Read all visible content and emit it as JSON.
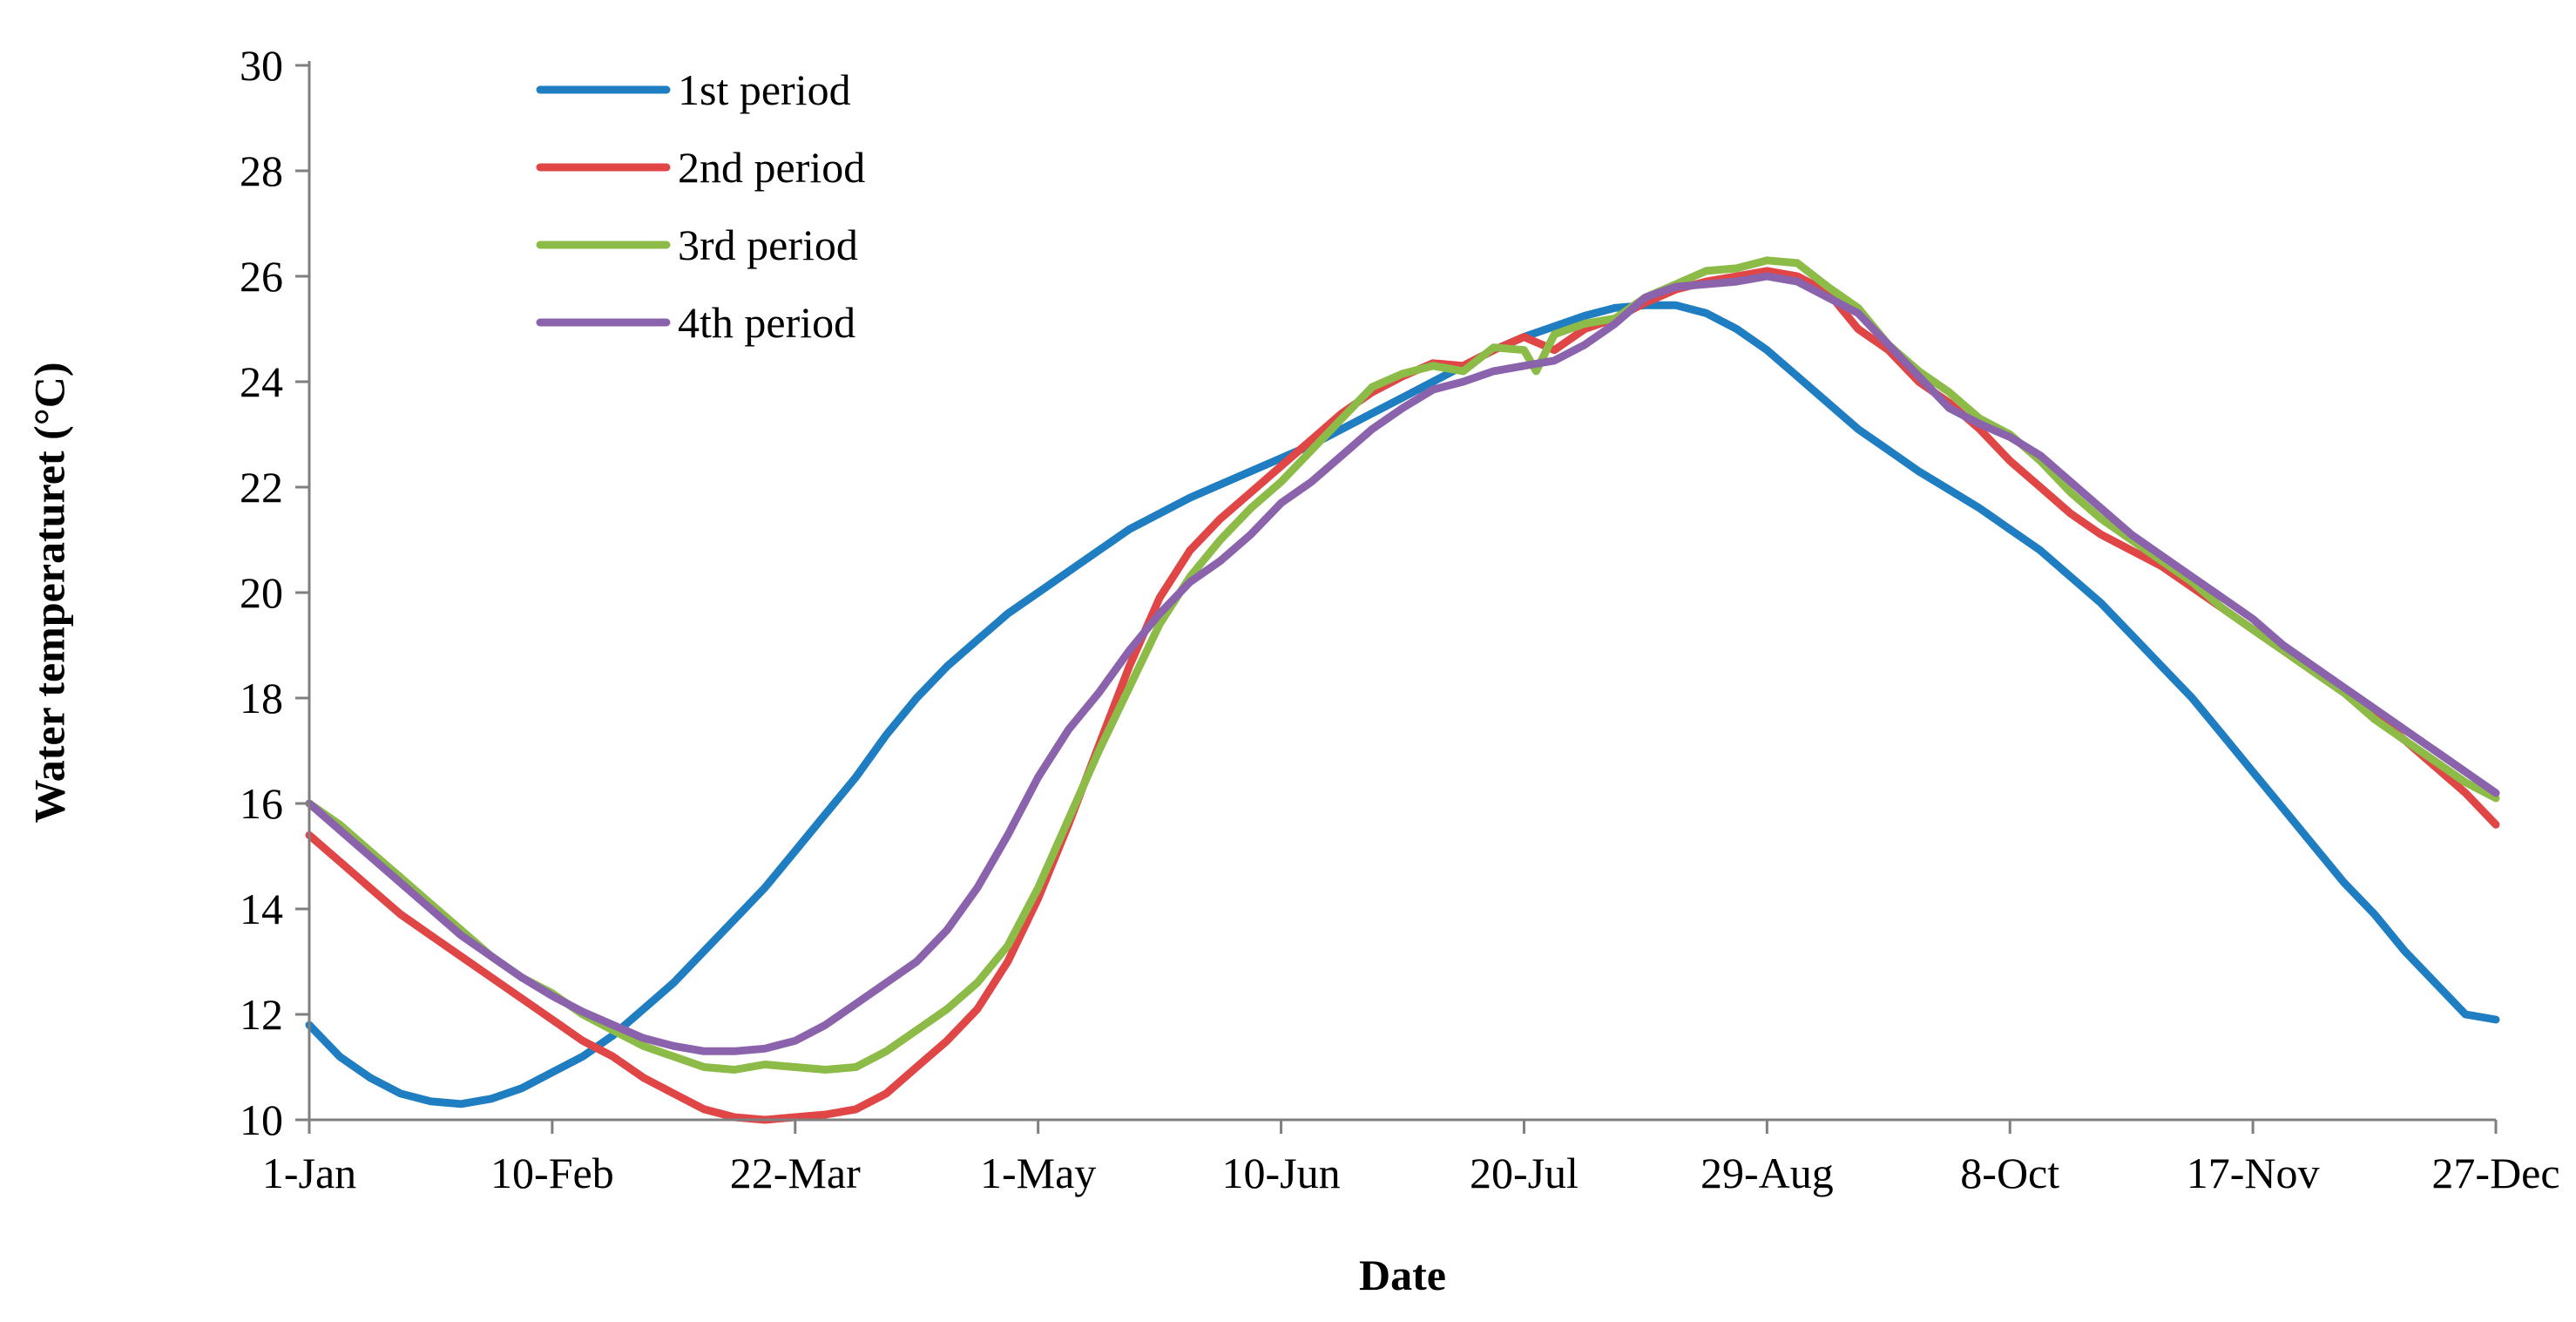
{
  "chart_data": {
    "type": "line",
    "title": "",
    "xlabel": "Date",
    "ylabel": "Water temperaturet (°C)",
    "ylim": [
      10,
      30
    ],
    "xlim": [
      1,
      361
    ],
    "yticks": [
      10,
      12,
      14,
      16,
      18,
      20,
      22,
      24,
      26,
      28,
      30
    ],
    "xticks": [
      {
        "day": 1,
        "label": "1-Jan"
      },
      {
        "day": 41,
        "label": "10-Feb"
      },
      {
        "day": 81,
        "label": "22-Mar"
      },
      {
        "day": 121,
        "label": "1-May"
      },
      {
        "day": 161,
        "label": "10-Jun"
      },
      {
        "day": 201,
        "label": "20-Jul"
      },
      {
        "day": 241,
        "label": "29-Aug"
      },
      {
        "day": 281,
        "label": "8-Oct"
      },
      {
        "day": 321,
        "label": "17-Nov"
      },
      {
        "day": 361,
        "label": "27-Dec"
      }
    ],
    "grid": false,
    "legend_position": "top-left",
    "series": [
      {
        "name": "1st period",
        "color": "#1f7dc1",
        "points": [
          [
            1,
            11.8
          ],
          [
            6,
            11.2
          ],
          [
            11,
            10.8
          ],
          [
            16,
            10.5
          ],
          [
            21,
            10.35
          ],
          [
            26,
            10.3
          ],
          [
            31,
            10.4
          ],
          [
            36,
            10.6
          ],
          [
            41,
            10.9
          ],
          [
            46,
            11.2
          ],
          [
            51,
            11.6
          ],
          [
            56,
            12.1
          ],
          [
            61,
            12.6
          ],
          [
            66,
            13.2
          ],
          [
            71,
            13.8
          ],
          [
            76,
            14.4
          ],
          [
            81,
            15.1
          ],
          [
            86,
            15.8
          ],
          [
            91,
            16.5
          ],
          [
            96,
            17.3
          ],
          [
            101,
            18.0
          ],
          [
            106,
            18.6
          ],
          [
            111,
            19.1
          ],
          [
            116,
            19.6
          ],
          [
            121,
            20.0
          ],
          [
            126,
            20.4
          ],
          [
            131,
            20.8
          ],
          [
            136,
            21.2
          ],
          [
            141,
            21.5
          ],
          [
            146,
            21.8
          ],
          [
            151,
            22.05
          ],
          [
            156,
            22.3
          ],
          [
            161,
            22.55
          ],
          [
            166,
            22.8
          ],
          [
            171,
            23.1
          ],
          [
            176,
            23.4
          ],
          [
            181,
            23.7
          ],
          [
            186,
            24.0
          ],
          [
            191,
            24.3
          ],
          [
            196,
            24.6
          ],
          [
            201,
            24.85
          ],
          [
            206,
            25.05
          ],
          [
            211,
            25.25
          ],
          [
            216,
            25.4
          ],
          [
            221,
            25.45
          ],
          [
            226,
            25.45
          ],
          [
            231,
            25.3
          ],
          [
            236,
            25.0
          ],
          [
            241,
            24.6
          ],
          [
            246,
            24.1
          ],
          [
            251,
            23.6
          ],
          [
            256,
            23.1
          ],
          [
            261,
            22.7
          ],
          [
            266,
            22.3
          ],
          [
            271,
            21.95
          ],
          [
            276,
            21.6
          ],
          [
            281,
            21.2
          ],
          [
            286,
            20.8
          ],
          [
            291,
            20.3
          ],
          [
            296,
            19.8
          ],
          [
            301,
            19.2
          ],
          [
            306,
            18.6
          ],
          [
            311,
            18.0
          ],
          [
            316,
            17.3
          ],
          [
            321,
            16.6
          ],
          [
            326,
            15.9
          ],
          [
            331,
            15.2
          ],
          [
            336,
            14.5
          ],
          [
            341,
            13.9
          ],
          [
            346,
            13.2
          ],
          [
            351,
            12.6
          ],
          [
            356,
            12.0
          ],
          [
            361,
            11.9
          ]
        ]
      },
      {
        "name": "2nd period",
        "color": "#e04646",
        "points": [
          [
            1,
            15.4
          ],
          [
            6,
            14.9
          ],
          [
            11,
            14.4
          ],
          [
            16,
            13.9
          ],
          [
            21,
            13.5
          ],
          [
            26,
            13.1
          ],
          [
            31,
            12.7
          ],
          [
            36,
            12.3
          ],
          [
            41,
            11.9
          ],
          [
            46,
            11.5
          ],
          [
            51,
            11.2
          ],
          [
            56,
            10.8
          ],
          [
            61,
            10.5
          ],
          [
            66,
            10.2
          ],
          [
            71,
            10.05
          ],
          [
            76,
            10.0
          ],
          [
            81,
            10.05
          ],
          [
            86,
            10.1
          ],
          [
            91,
            10.2
          ],
          [
            96,
            10.5
          ],
          [
            101,
            11.0
          ],
          [
            106,
            11.5
          ],
          [
            111,
            12.1
          ],
          [
            116,
            13.0
          ],
          [
            121,
            14.2
          ],
          [
            126,
            15.6
          ],
          [
            131,
            17.1
          ],
          [
            136,
            18.6
          ],
          [
            141,
            19.9
          ],
          [
            146,
            20.8
          ],
          [
            151,
            21.4
          ],
          [
            156,
            21.9
          ],
          [
            161,
            22.4
          ],
          [
            166,
            22.9
          ],
          [
            171,
            23.4
          ],
          [
            176,
            23.8
          ],
          [
            181,
            24.1
          ],
          [
            186,
            24.35
          ],
          [
            191,
            24.3
          ],
          [
            196,
            24.6
          ],
          [
            201,
            24.85
          ],
          [
            206,
            24.6
          ],
          [
            211,
            25.0
          ],
          [
            216,
            25.2
          ],
          [
            221,
            25.5
          ],
          [
            226,
            25.75
          ],
          [
            231,
            25.9
          ],
          [
            236,
            26.0
          ],
          [
            241,
            26.1
          ],
          [
            246,
            26.0
          ],
          [
            251,
            25.7
          ],
          [
            256,
            25.0
          ],
          [
            261,
            24.6
          ],
          [
            266,
            24.0
          ],
          [
            271,
            23.6
          ],
          [
            276,
            23.1
          ],
          [
            281,
            22.5
          ],
          [
            286,
            22.0
          ],
          [
            291,
            21.5
          ],
          [
            296,
            21.1
          ],
          [
            301,
            20.8
          ],
          [
            306,
            20.5
          ],
          [
            311,
            20.1
          ],
          [
            316,
            19.7
          ],
          [
            321,
            19.3
          ],
          [
            326,
            18.9
          ],
          [
            331,
            18.5
          ],
          [
            336,
            18.1
          ],
          [
            341,
            17.7
          ],
          [
            346,
            17.2
          ],
          [
            351,
            16.7
          ],
          [
            356,
            16.2
          ],
          [
            361,
            15.6
          ]
        ]
      },
      {
        "name": "3rd period",
        "color": "#8cbb48",
        "points": [
          [
            1,
            16.0
          ],
          [
            6,
            15.6
          ],
          [
            11,
            15.1
          ],
          [
            16,
            14.6
          ],
          [
            21,
            14.1
          ],
          [
            26,
            13.6
          ],
          [
            31,
            13.1
          ],
          [
            36,
            12.7
          ],
          [
            41,
            12.4
          ],
          [
            46,
            12.0
          ],
          [
            51,
            11.7
          ],
          [
            56,
            11.4
          ],
          [
            61,
            11.2
          ],
          [
            66,
            11.0
          ],
          [
            71,
            10.95
          ],
          [
            76,
            11.05
          ],
          [
            81,
            11.0
          ],
          [
            86,
            10.95
          ],
          [
            91,
            11.0
          ],
          [
            96,
            11.3
          ],
          [
            101,
            11.7
          ],
          [
            106,
            12.1
          ],
          [
            111,
            12.6
          ],
          [
            116,
            13.3
          ],
          [
            121,
            14.4
          ],
          [
            126,
            15.7
          ],
          [
            131,
            17.0
          ],
          [
            136,
            18.2
          ],
          [
            141,
            19.4
          ],
          [
            146,
            20.3
          ],
          [
            151,
            21.0
          ],
          [
            156,
            21.6
          ],
          [
            161,
            22.1
          ],
          [
            166,
            22.7
          ],
          [
            171,
            23.3
          ],
          [
            176,
            23.9
          ],
          [
            181,
            24.15
          ],
          [
            186,
            24.3
          ],
          [
            191,
            24.2
          ],
          [
            196,
            24.65
          ],
          [
            201,
            24.6
          ],
          [
            203,
            24.2
          ],
          [
            206,
            24.9
          ],
          [
            211,
            25.1
          ],
          [
            216,
            25.2
          ],
          [
            221,
            25.6
          ],
          [
            226,
            25.85
          ],
          [
            231,
            26.1
          ],
          [
            236,
            26.15
          ],
          [
            241,
            26.3
          ],
          [
            246,
            26.25
          ],
          [
            251,
            25.8
          ],
          [
            256,
            25.4
          ],
          [
            261,
            24.7
          ],
          [
            266,
            24.2
          ],
          [
            271,
            23.8
          ],
          [
            276,
            23.3
          ],
          [
            281,
            23.0
          ],
          [
            286,
            22.5
          ],
          [
            291,
            21.9
          ],
          [
            296,
            21.4
          ],
          [
            301,
            21.0
          ],
          [
            306,
            20.6
          ],
          [
            311,
            20.2
          ],
          [
            316,
            19.7
          ],
          [
            321,
            19.3
          ],
          [
            326,
            18.9
          ],
          [
            331,
            18.5
          ],
          [
            336,
            18.1
          ],
          [
            341,
            17.6
          ],
          [
            346,
            17.2
          ],
          [
            351,
            16.8
          ],
          [
            356,
            16.4
          ],
          [
            361,
            16.1
          ]
        ]
      },
      {
        "name": "4th period",
        "color": "#8b63ad",
        "points": [
          [
            1,
            16.0
          ],
          [
            6,
            15.5
          ],
          [
            11,
            15.0
          ],
          [
            16,
            14.5
          ],
          [
            21,
            14.0
          ],
          [
            26,
            13.5
          ],
          [
            31,
            13.1
          ],
          [
            36,
            12.7
          ],
          [
            41,
            12.35
          ],
          [
            46,
            12.05
          ],
          [
            51,
            11.8
          ],
          [
            56,
            11.55
          ],
          [
            61,
            11.4
          ],
          [
            66,
            11.3
          ],
          [
            71,
            11.3
          ],
          [
            76,
            11.35
          ],
          [
            81,
            11.5
          ],
          [
            86,
            11.8
          ],
          [
            91,
            12.2
          ],
          [
            96,
            12.6
          ],
          [
            101,
            13.0
          ],
          [
            106,
            13.6
          ],
          [
            111,
            14.4
          ],
          [
            116,
            15.4
          ],
          [
            121,
            16.5
          ],
          [
            126,
            17.4
          ],
          [
            131,
            18.1
          ],
          [
            136,
            18.9
          ],
          [
            141,
            19.6
          ],
          [
            146,
            20.2
          ],
          [
            151,
            20.6
          ],
          [
            156,
            21.1
          ],
          [
            161,
            21.7
          ],
          [
            166,
            22.1
          ],
          [
            171,
            22.6
          ],
          [
            176,
            23.1
          ],
          [
            181,
            23.5
          ],
          [
            186,
            23.85
          ],
          [
            191,
            24.0
          ],
          [
            196,
            24.2
          ],
          [
            201,
            24.3
          ],
          [
            206,
            24.4
          ],
          [
            211,
            24.7
          ],
          [
            216,
            25.1
          ],
          [
            221,
            25.6
          ],
          [
            226,
            25.8
          ],
          [
            231,
            25.85
          ],
          [
            236,
            25.9
          ],
          [
            241,
            26.0
          ],
          [
            246,
            25.9
          ],
          [
            251,
            25.6
          ],
          [
            256,
            25.3
          ],
          [
            261,
            24.7
          ],
          [
            266,
            24.1
          ],
          [
            271,
            23.5
          ],
          [
            276,
            23.2
          ],
          [
            281,
            22.95
          ],
          [
            286,
            22.6
          ],
          [
            291,
            22.1
          ],
          [
            296,
            21.6
          ],
          [
            301,
            21.1
          ],
          [
            306,
            20.7
          ],
          [
            311,
            20.3
          ],
          [
            316,
            19.9
          ],
          [
            321,
            19.5
          ],
          [
            326,
            19.0
          ],
          [
            331,
            18.6
          ],
          [
            336,
            18.2
          ],
          [
            341,
            17.8
          ],
          [
            346,
            17.4
          ],
          [
            351,
            17.0
          ],
          [
            356,
            16.6
          ],
          [
            361,
            16.2
          ]
        ]
      }
    ]
  }
}
